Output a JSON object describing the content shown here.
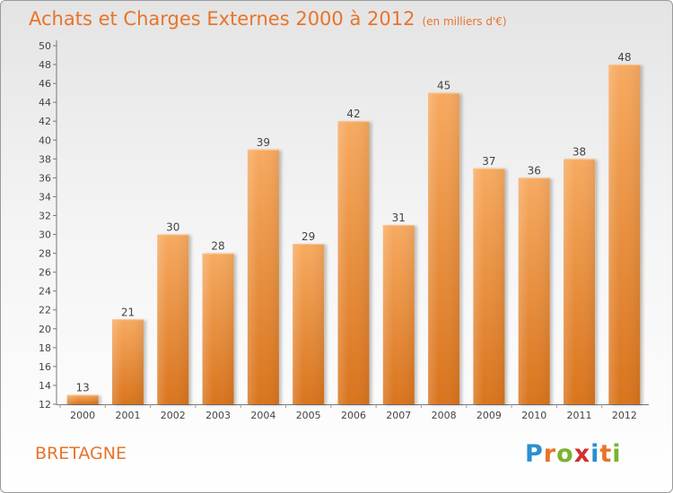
{
  "title": "Achats et Charges Externes 2000 à 2012",
  "unit": "(en milliers d'€)",
  "region": "BRETAGNE",
  "logo": {
    "letters": [
      "P",
      "r",
      "o",
      "x",
      "i",
      "t",
      "i"
    ],
    "colors": [
      "#2a8fd0",
      "#e8742a",
      "#7ab32e",
      "#d32f2f",
      "#2a8fd0",
      "#e8742a",
      "#7ab32e"
    ]
  },
  "colors": {
    "accent": "#e8742a",
    "bar_light": "#f5a55c",
    "bar_dark": "#d97a22"
  },
  "chart_data": {
    "type": "bar",
    "categories": [
      "2000",
      "2001",
      "2002",
      "2003",
      "2004",
      "2005",
      "2006",
      "2007",
      "2008",
      "2009",
      "2010",
      "2011",
      "2012"
    ],
    "values": [
      13,
      21,
      30,
      28,
      39,
      29,
      42,
      31,
      45,
      37,
      36,
      38,
      48
    ],
    "data_labels": [
      "13",
      "21",
      "30",
      "28",
      "39",
      "29",
      "42",
      "31",
      "45",
      "37",
      "36",
      "38",
      "48"
    ],
    "y_ticks": [
      "12",
      "14",
      "16",
      "18",
      "20",
      "22",
      "24",
      "26",
      "28",
      "30",
      "32",
      "34",
      "36",
      "38",
      "40",
      "42",
      "44",
      "46",
      "48",
      "50"
    ],
    "ylim": [
      12,
      50
    ],
    "grid": false,
    "legend": "none"
  }
}
